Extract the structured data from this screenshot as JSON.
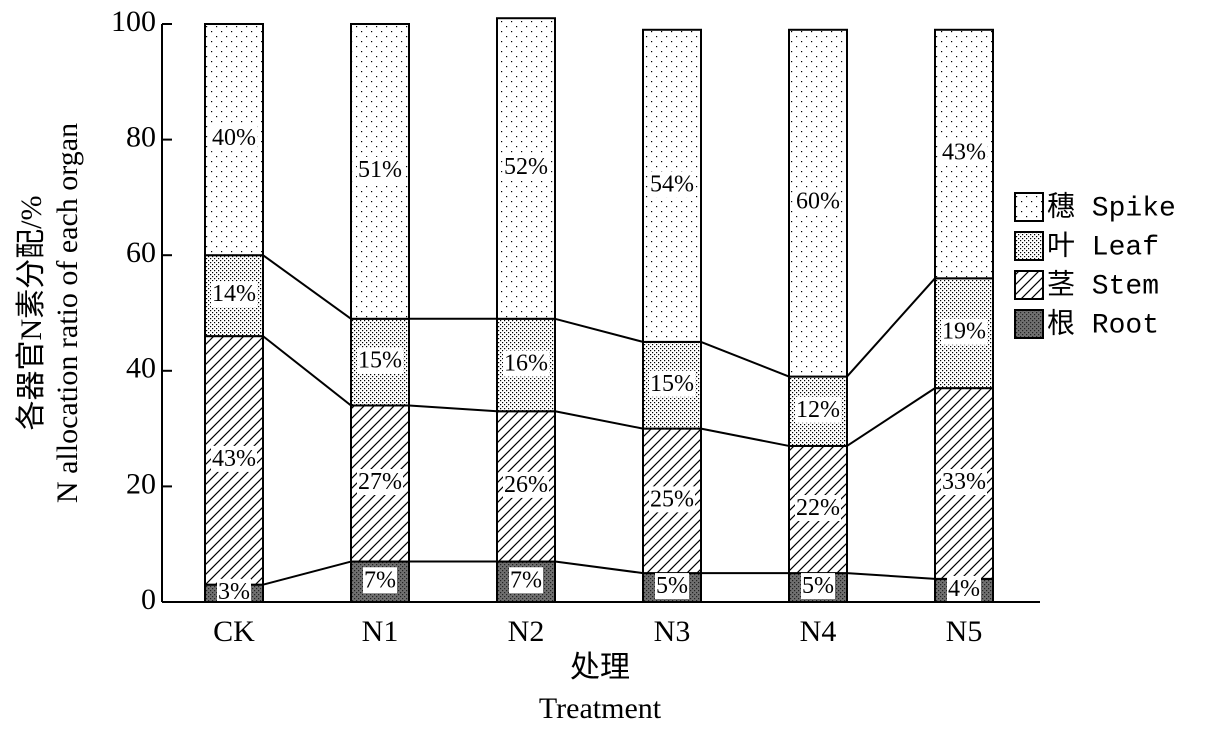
{
  "chart_data": {
    "type": "stacked_bar",
    "ylabel": [
      "各器官N素分配/%",
      "N allocation ratio of each organ"
    ],
    "xlabel": [
      "处理",
      "Treatment"
    ],
    "categories": [
      "CK",
      "N1",
      "N2",
      "N3",
      "N4",
      "N5"
    ],
    "series": [
      {
        "name": "根 Root",
        "color": "#707070",
        "pattern": "dense-dots",
        "values": [
          3,
          7,
          7,
          5,
          5,
          4
        ],
        "value_labels": [
          "3%",
          "7%",
          "7%",
          "5%",
          "5%",
          "4%"
        ]
      },
      {
        "name": "茎 Stem",
        "color": "#000000",
        "pattern": "hatch",
        "values": [
          43,
          27,
          26,
          25,
          22,
          33
        ],
        "value_labels": [
          "43%",
          "27%",
          "26%",
          "25%",
          "22%",
          "33%"
        ]
      },
      {
        "name": "叶 Leaf",
        "color": "#000000",
        "pattern": "dense-dots",
        "values": [
          14,
          15,
          16,
          15,
          12,
          19
        ],
        "value_labels": [
          "14%",
          "15%",
          "16%",
          "15%",
          "12%",
          "19%"
        ]
      },
      {
        "name": "穗 Spike",
        "color": "#000000",
        "pattern": "sparse-dots",
        "values": [
          40,
          51,
          52,
          54,
          60,
          43
        ],
        "value_labels": [
          "40%",
          "51%",
          "52%",
          "54%",
          "60%",
          "43%"
        ]
      }
    ],
    "ylim": [
      0,
      100
    ],
    "yticks": [
      0,
      20,
      40,
      60,
      80,
      100
    ],
    "legend": "right"
  }
}
